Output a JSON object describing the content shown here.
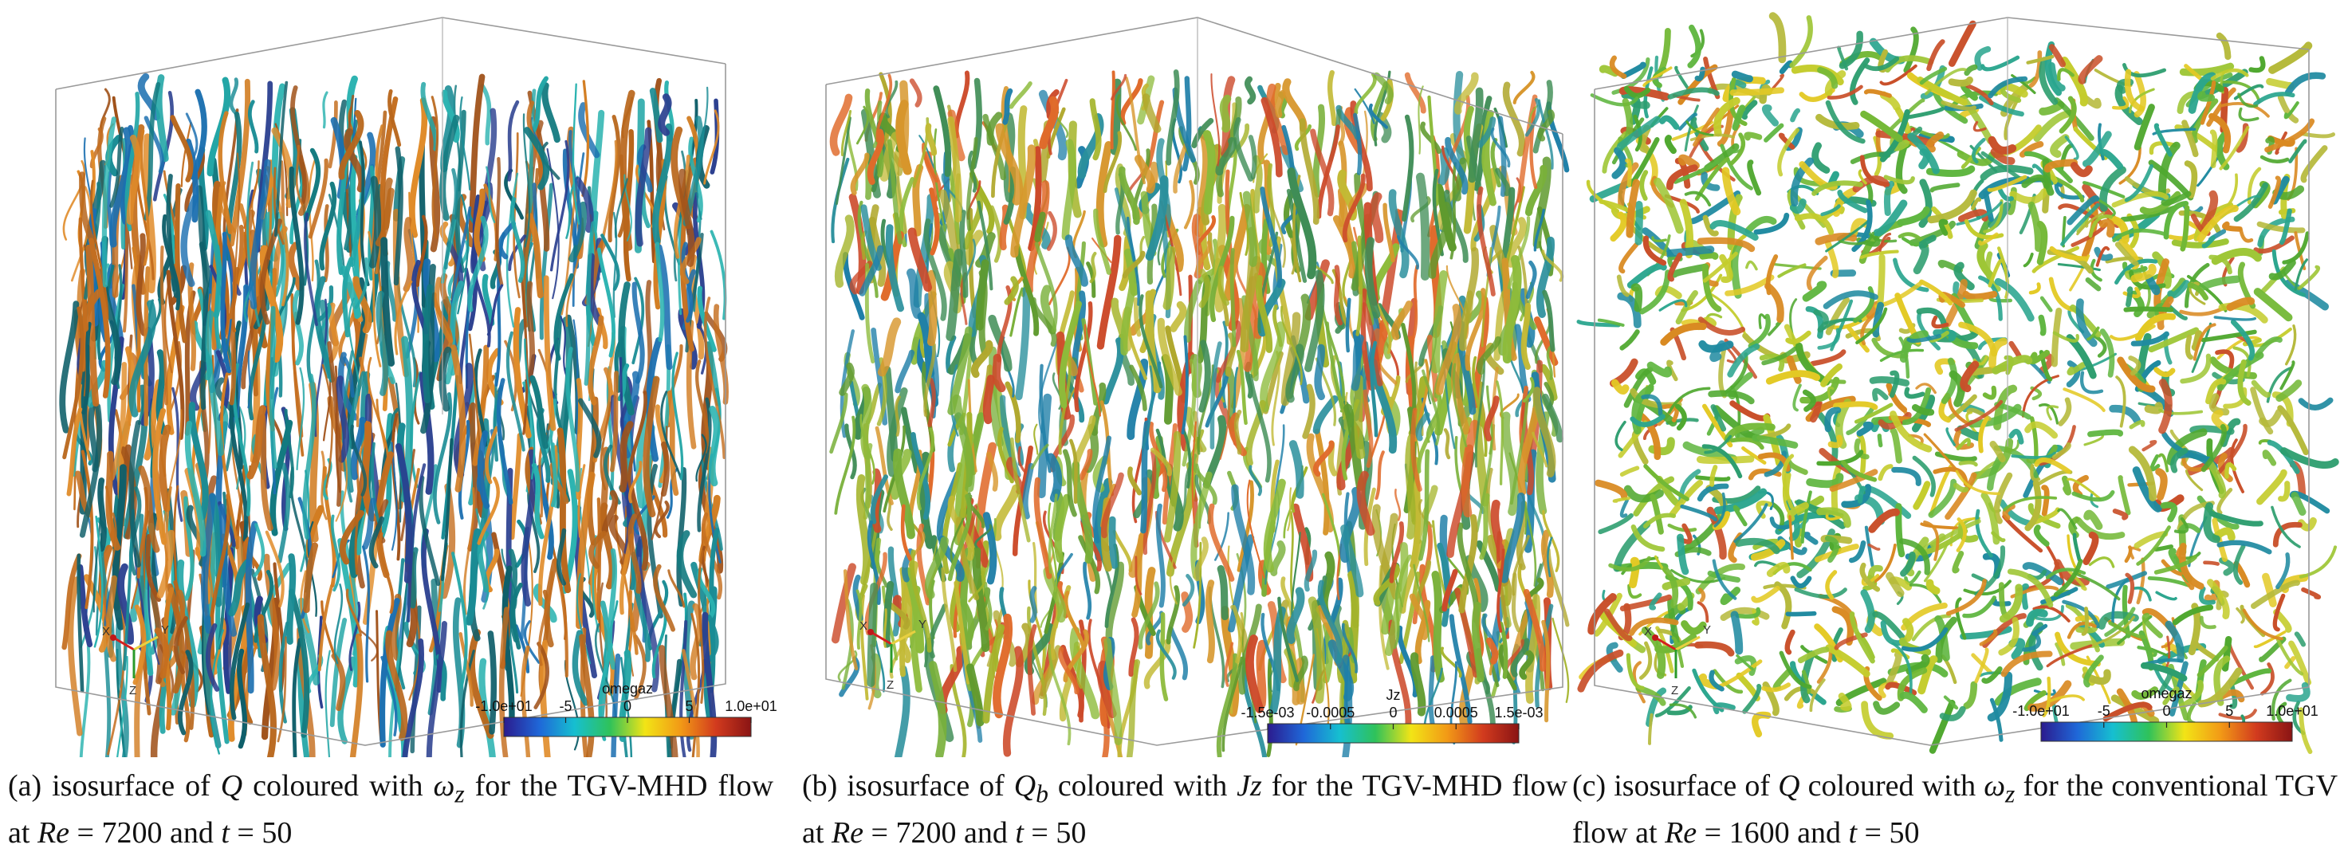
{
  "panels": [
    {
      "id": "a",
      "scheme": "mhd",
      "colorbar": {
        "title": "omegaz",
        "ticks": [
          "-1.0e+01",
          "-5",
          "0",
          "5",
          "1.0e+01"
        ],
        "stops": [
          "#2b1b8e",
          "#1f67d8",
          "#16bfd0",
          "#2fc25a",
          "#f2e416",
          "#f29a16",
          "#d23b1e",
          "#8a1414"
        ]
      },
      "triad": {
        "x": "X",
        "y": "Y",
        "z": "Z"
      },
      "caption": {
        "tag": "(a)",
        "pre": "isosurface of",
        "sym1": "Q",
        "mid": "coloured with",
        "sym2": "ω",
        "sym2_sub": "z",
        "post": "for the TGV-MHD flow at",
        "re_label": "Re",
        "re_value": "= 7200",
        "and": "and",
        "t_label": "t",
        "t_value": "= 50"
      }
    },
    {
      "id": "b",
      "scheme": "qb",
      "colorbar": {
        "title": "Jz",
        "ticks": [
          "-1.5e-03",
          "-0.0005",
          "0",
          "0.0005",
          "1.5e-03"
        ],
        "stops": [
          "#2b1b8e",
          "#1f67d8",
          "#16bfd0",
          "#2fc25a",
          "#f2e416",
          "#f29a16",
          "#d23b1e",
          "#8a1414"
        ]
      },
      "triad": {
        "x": "X",
        "y": "Y",
        "z": "Z"
      },
      "caption": {
        "tag": "(b)",
        "pre": "isosurface of",
        "sym1": "Q",
        "sym1_sub": "b",
        "mid": "coloured with",
        "sym2": "Jz",
        "post": "for the TGV-MHD flow at",
        "re_label": "Re",
        "re_value": "= 7200",
        "and": "and",
        "t_label": "t",
        "t_value": "= 50"
      }
    },
    {
      "id": "c",
      "scheme": "tgv",
      "colorbar": {
        "title": "omegaz",
        "ticks": [
          "-1.0e+01",
          "-5",
          "0",
          "5",
          "1.0e+01"
        ],
        "stops": [
          "#2b1b8e",
          "#1f67d8",
          "#16bfd0",
          "#2fc25a",
          "#f2e416",
          "#f29a16",
          "#d23b1e",
          "#8a1414"
        ]
      },
      "triad": {
        "x": "X",
        "y": "Y",
        "z": "Z"
      },
      "caption": {
        "tag": "(c)",
        "pre": "isosurface of",
        "sym1": "Q",
        "mid": "coloured with",
        "sym2": "ω",
        "sym2_sub": "z",
        "post": "for the conventional TGV flow at",
        "re_label": "Re",
        "re_value": "= 1600",
        "and": "and",
        "t_label": "t",
        "t_value": "= 50"
      }
    }
  ]
}
